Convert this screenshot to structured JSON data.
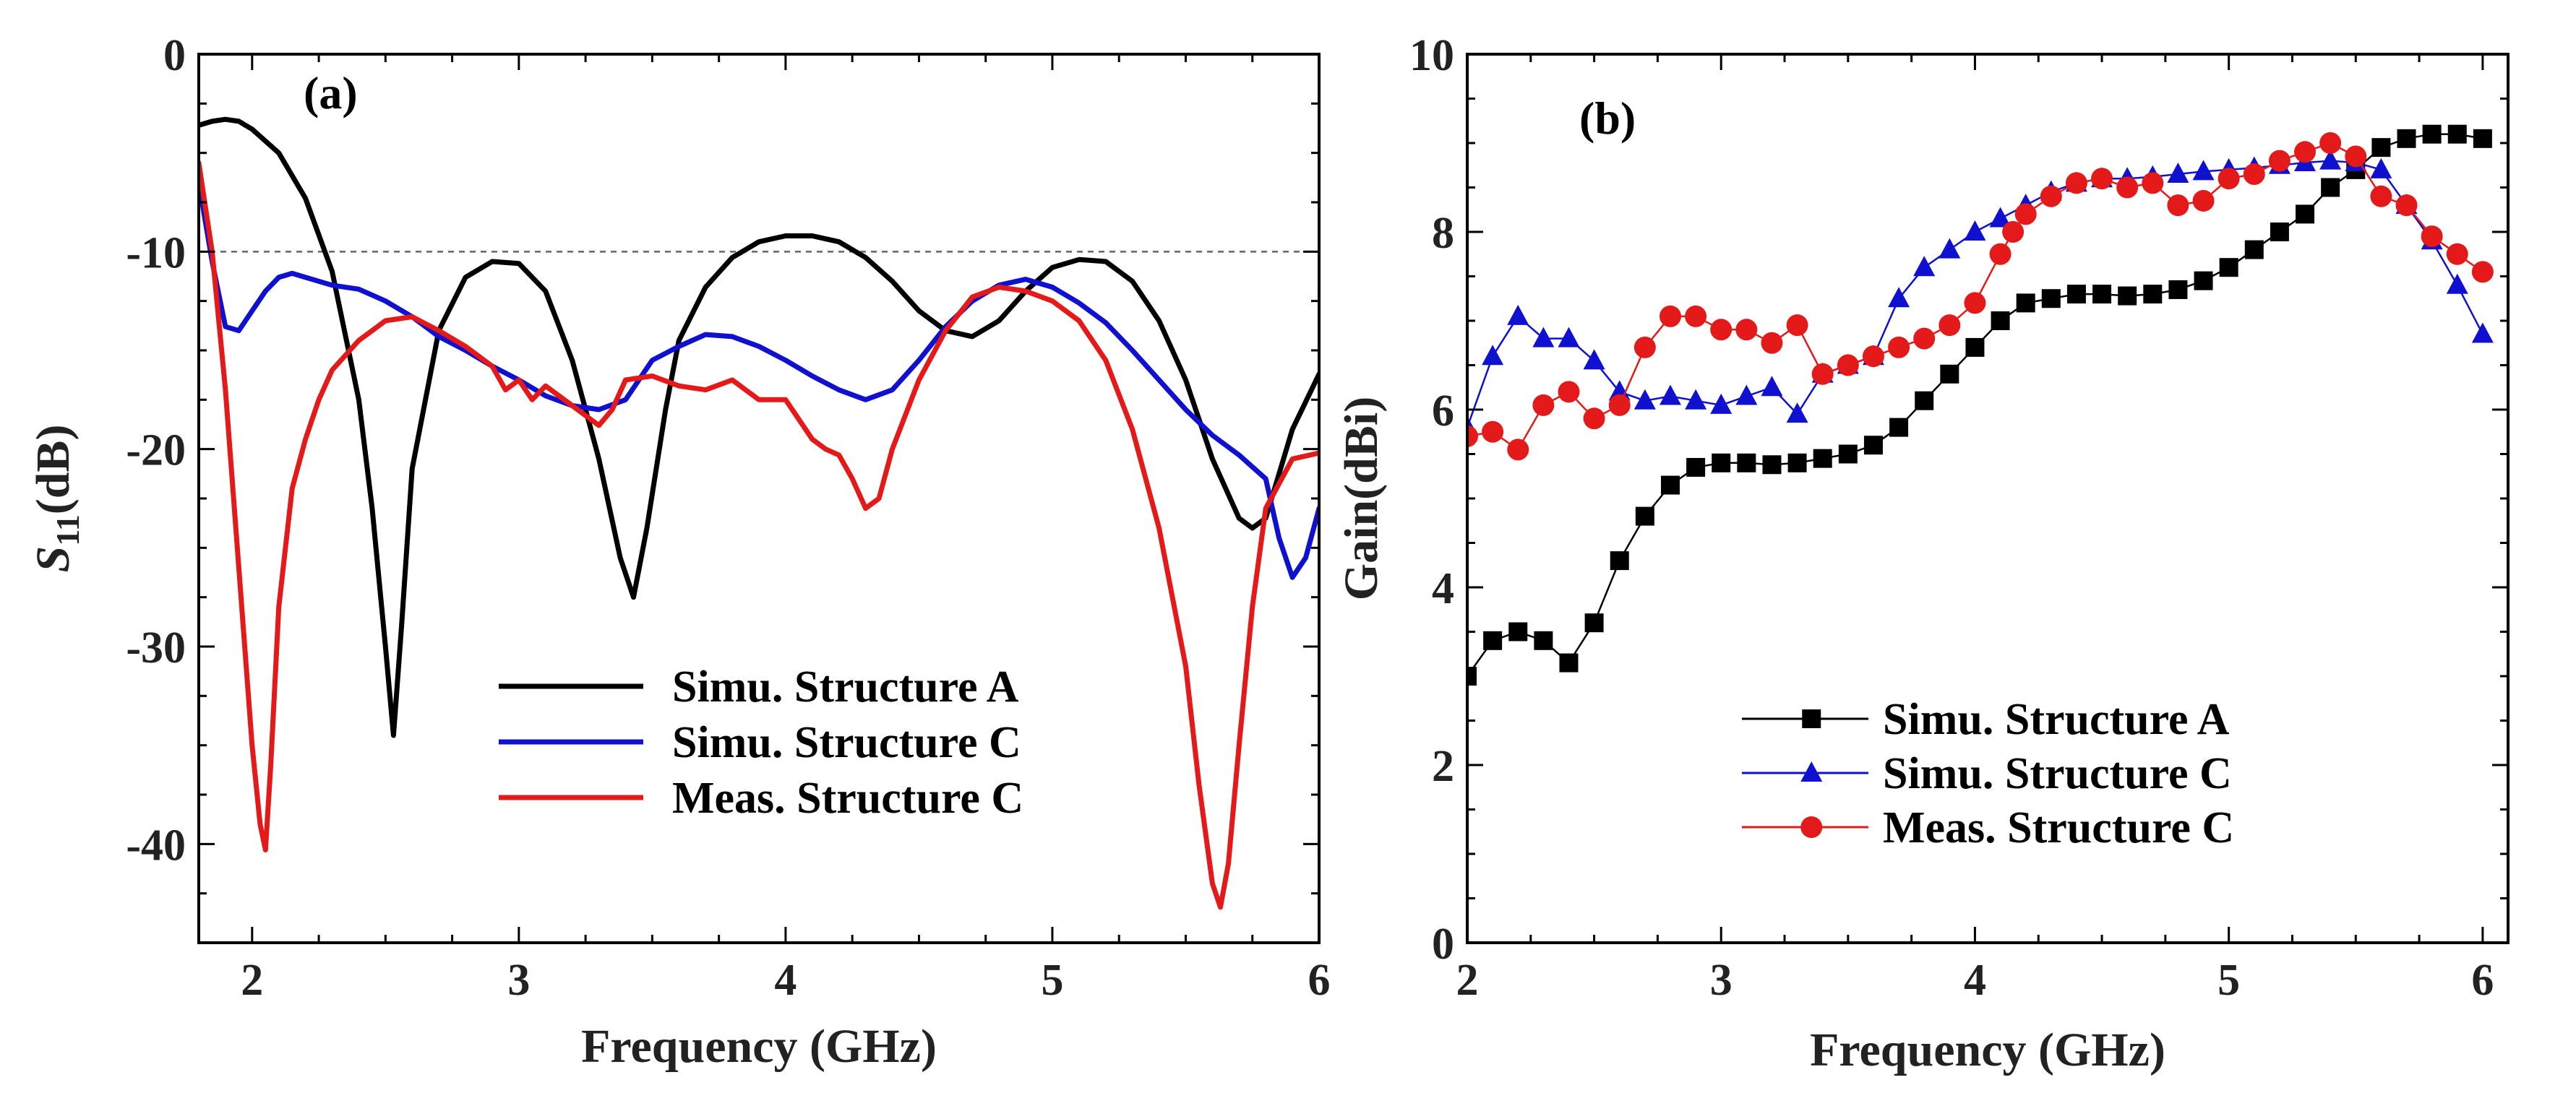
{
  "chart_data": [
    {
      "type": "line",
      "panel_label": "(a)",
      "xlabel": "Frequency (GHz)",
      "ylabel_main": "S",
      "ylabel_sub": "11",
      "ylabel_unit": "(dB)",
      "xlim": [
        1.8,
        6
      ],
      "ylim": [
        -45,
        0
      ],
      "xticks": [
        2,
        3,
        4,
        5,
        6
      ],
      "yticks": [
        0,
        -10,
        -20,
        -30,
        -40
      ],
      "xtick_labels": [
        "2",
        "3",
        "4",
        "5",
        "6"
      ],
      "ytick_labels": [
        "0",
        "-10",
        "-20",
        "-30",
        "-40"
      ],
      "reference_line": -10,
      "legend_position": "lower-center",
      "series": [
        {
          "name": "Simu. Structure A",
          "color": "#000000",
          "x": [
            1.8,
            1.85,
            1.9,
            1.95,
            2.0,
            2.1,
            2.2,
            2.3,
            2.4,
            2.45,
            2.5,
            2.53,
            2.56,
            2.6,
            2.7,
            2.8,
            2.9,
            3.0,
            3.1,
            3.2,
            3.3,
            3.38,
            3.43,
            3.48,
            3.55,
            3.6,
            3.7,
            3.8,
            3.9,
            4.0,
            4.1,
            4.2,
            4.3,
            4.4,
            4.5,
            4.6,
            4.7,
            4.8,
            4.9,
            5.0,
            5.1,
            5.2,
            5.3,
            5.4,
            5.5,
            5.6,
            5.7,
            5.75,
            5.8,
            5.9,
            6.0
          ],
          "y": [
            -3.6,
            -3.4,
            -3.3,
            -3.4,
            -3.8,
            -5.0,
            -7.3,
            -11.0,
            -17.5,
            -23.0,
            -30.0,
            -34.5,
            -29.0,
            -21.0,
            -14.0,
            -11.3,
            -10.5,
            -10.6,
            -12.0,
            -15.5,
            -20.5,
            -25.5,
            -27.5,
            -24.0,
            -18.0,
            -14.5,
            -11.8,
            -10.3,
            -9.5,
            -9.2,
            -9.2,
            -9.5,
            -10.3,
            -11.5,
            -13.0,
            -14.0,
            -14.3,
            -13.5,
            -12.0,
            -10.8,
            -10.4,
            -10.5,
            -11.5,
            -13.5,
            -16.5,
            -20.5,
            -23.5,
            -24.0,
            -23.5,
            -19.0,
            -16.2
          ]
        },
        {
          "name": "Simu. Structure C",
          "color": "#1010d0",
          "x": [
            1.8,
            1.85,
            1.9,
            1.95,
            2.0,
            2.05,
            2.1,
            2.15,
            2.2,
            2.3,
            2.4,
            2.5,
            2.6,
            2.7,
            2.8,
            2.9,
            3.0,
            3.1,
            3.2,
            3.3,
            3.4,
            3.45,
            3.5,
            3.6,
            3.7,
            3.8,
            3.9,
            4.0,
            4.1,
            4.2,
            4.3,
            4.4,
            4.5,
            4.6,
            4.7,
            4.8,
            4.9,
            5.0,
            5.1,
            5.2,
            5.3,
            5.4,
            5.5,
            5.6,
            5.7,
            5.8,
            5.85,
            5.9,
            5.95,
            6.0
          ],
          "y": [
            -6.5,
            -10.5,
            -13.8,
            -14.0,
            -13.0,
            -12.0,
            -11.3,
            -11.1,
            -11.3,
            -11.7,
            -11.9,
            -12.5,
            -13.3,
            -14.3,
            -15.0,
            -15.8,
            -16.5,
            -17.3,
            -17.8,
            -18.0,
            -17.5,
            -16.5,
            -15.5,
            -14.8,
            -14.2,
            -14.3,
            -14.8,
            -15.5,
            -16.3,
            -17.0,
            -17.5,
            -17.0,
            -15.5,
            -13.8,
            -12.5,
            -11.7,
            -11.4,
            -11.8,
            -12.6,
            -13.6,
            -15.0,
            -16.5,
            -18.0,
            -19.3,
            -20.3,
            -21.5,
            -24.5,
            -26.5,
            -25.5,
            -23.0
          ]
        },
        {
          "name": "Meas. Structure C",
          "color": "#e41a1a",
          "x": [
            1.8,
            1.85,
            1.9,
            1.95,
            2.0,
            2.03,
            2.05,
            2.07,
            2.1,
            2.15,
            2.2,
            2.25,
            2.3,
            2.4,
            2.5,
            2.6,
            2.7,
            2.8,
            2.9,
            2.95,
            3.0,
            3.05,
            3.1,
            3.2,
            3.3,
            3.35,
            3.4,
            3.5,
            3.6,
            3.7,
            3.8,
            3.9,
            4.0,
            4.1,
            4.15,
            4.2,
            4.25,
            4.3,
            4.35,
            4.4,
            4.5,
            4.6,
            4.7,
            4.8,
            4.9,
            5.0,
            5.1,
            5.2,
            5.3,
            5.4,
            5.5,
            5.55,
            5.6,
            5.63,
            5.66,
            5.7,
            5.75,
            5.8,
            5.9,
            6.0
          ],
          "y": [
            -5.5,
            -10.0,
            -17.0,
            -26.0,
            -35.0,
            -39.0,
            -40.3,
            -36.0,
            -28.0,
            -22.0,
            -19.5,
            -17.5,
            -16.0,
            -14.5,
            -13.5,
            -13.3,
            -14.0,
            -14.8,
            -15.8,
            -17.0,
            -16.5,
            -17.5,
            -16.8,
            -17.8,
            -18.8,
            -18.0,
            -16.5,
            -16.3,
            -16.8,
            -17.0,
            -16.5,
            -17.5,
            -17.5,
            -19.5,
            -20.0,
            -20.3,
            -21.5,
            -23.0,
            -22.5,
            -20.0,
            -16.5,
            -14.0,
            -12.3,
            -11.8,
            -12.0,
            -12.5,
            -13.5,
            -15.5,
            -19.0,
            -24.0,
            -31.0,
            -37.0,
            -42.0,
            -43.2,
            -41.0,
            -35.0,
            -28.0,
            -23.0,
            -20.5,
            -20.2
          ]
        }
      ]
    },
    {
      "type": "line",
      "panel_label": "(b)",
      "xlabel": "Frequency (GHz)",
      "ylabel": "Gain(dBi)",
      "xlim": [
        2,
        6.1
      ],
      "ylim": [
        0,
        10
      ],
      "xticks": [
        2,
        3,
        4,
        5,
        6
      ],
      "yticks": [
        0,
        2,
        4,
        6,
        8,
        10
      ],
      "xtick_labels": [
        "2",
        "3",
        "4",
        "5",
        "6"
      ],
      "ytick_labels": [
        "0",
        "2",
        "4",
        "6",
        "8",
        "10"
      ],
      "legend_position": "lower-center",
      "series": [
        {
          "name": "Simu. Structure A",
          "color": "#000000",
          "marker": "square",
          "x": [
            2.0,
            2.1,
            2.2,
            2.3,
            2.4,
            2.5,
            2.6,
            2.7,
            2.8,
            2.9,
            3.0,
            3.1,
            3.2,
            3.3,
            3.4,
            3.5,
            3.6,
            3.7,
            3.8,
            3.9,
            4.0,
            4.1,
            4.2,
            4.3,
            4.4,
            4.5,
            4.6,
            4.7,
            4.8,
            4.9,
            5.0,
            5.1,
            5.2,
            5.3,
            5.4,
            5.5,
            5.6,
            5.7,
            5.8,
            5.9,
            6.0
          ],
          "y": [
            3.0,
            3.4,
            3.5,
            3.4,
            3.15,
            3.6,
            4.3,
            4.8,
            5.15,
            5.35,
            5.4,
            5.4,
            5.38,
            5.4,
            5.45,
            5.5,
            5.6,
            5.8,
            6.1,
            6.4,
            6.7,
            7.0,
            7.2,
            7.25,
            7.3,
            7.3,
            7.28,
            7.3,
            7.35,
            7.45,
            7.6,
            7.8,
            8.0,
            8.2,
            8.5,
            8.7,
            8.95,
            9.05,
            9.1,
            9.1,
            9.05
          ]
        },
        {
          "name": "Simu. Structure C",
          "color": "#1010d0",
          "marker": "triangle",
          "x": [
            2.0,
            2.1,
            2.2,
            2.3,
            2.4,
            2.5,
            2.6,
            2.7,
            2.8,
            2.9,
            3.0,
            3.1,
            3.2,
            3.3,
            3.4,
            3.5,
            3.6,
            3.7,
            3.8,
            3.9,
            4.0,
            4.1,
            4.2,
            4.3,
            4.4,
            4.5,
            4.6,
            4.7,
            4.8,
            4.9,
            5.0,
            5.1,
            5.2,
            5.3,
            5.4,
            5.5,
            5.6,
            5.7,
            5.8,
            5.9,
            6.0
          ],
          "y": [
            5.8,
            6.6,
            7.05,
            6.8,
            6.8,
            6.55,
            6.2,
            6.1,
            6.15,
            6.1,
            6.05,
            6.15,
            6.25,
            5.95,
            6.4,
            6.5,
            6.6,
            7.25,
            7.6,
            7.8,
            8.0,
            8.15,
            8.3,
            8.45,
            8.55,
            8.6,
            8.6,
            8.62,
            8.65,
            8.68,
            8.7,
            8.72,
            8.75,
            8.78,
            8.8,
            8.78,
            8.7,
            8.3,
            7.9,
            7.4,
            6.85
          ]
        },
        {
          "name": "Meas. Structure C",
          "color": "#e41a1a",
          "marker": "circle",
          "x": [
            2.0,
            2.1,
            2.2,
            2.3,
            2.4,
            2.5,
            2.6,
            2.7,
            2.8,
            2.9,
            3.0,
            3.1,
            3.2,
            3.3,
            3.4,
            3.5,
            3.6,
            3.7,
            3.8,
            3.9,
            4.0,
            4.1,
            4.15,
            4.2,
            4.3,
            4.4,
            4.5,
            4.6,
            4.7,
            4.8,
            4.9,
            5.0,
            5.1,
            5.2,
            5.3,
            5.4,
            5.5,
            5.6,
            5.7,
            5.8,
            5.9,
            6.0
          ],
          "y": [
            5.7,
            5.75,
            5.55,
            6.05,
            6.2,
            5.9,
            6.05,
            6.7,
            7.05,
            7.05,
            6.9,
            6.9,
            6.75,
            6.95,
            6.4,
            6.5,
            6.6,
            6.7,
            6.8,
            6.95,
            7.2,
            7.75,
            8.0,
            8.2,
            8.4,
            8.55,
            8.6,
            8.5,
            8.55,
            8.3,
            8.35,
            8.6,
            8.65,
            8.8,
            8.9,
            9.0,
            8.85,
            8.4,
            8.3,
            7.95,
            7.75,
            7.55
          ]
        }
      ]
    }
  ]
}
